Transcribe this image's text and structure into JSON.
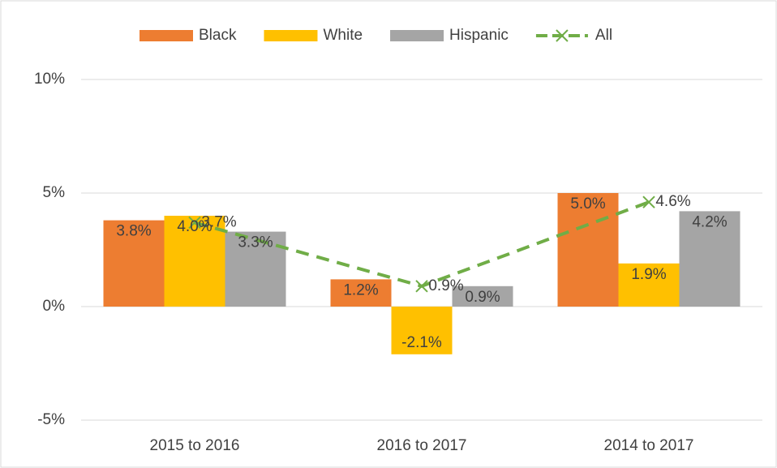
{
  "chart_data": {
    "type": "bar_line",
    "categories": [
      "2015 to 2016",
      "2016 to 2017",
      "2014 to 2017"
    ],
    "series": [
      {
        "name": "Black",
        "color": "#ed7d31",
        "type": "bar",
        "values": [
          3.8,
          1.2,
          5.0
        ],
        "value_labels": [
          "3.8%",
          "1.2%",
          "5.0%"
        ]
      },
      {
        "name": "White",
        "color": "#ffc000",
        "type": "bar",
        "values": [
          4.0,
          -2.1,
          1.9
        ],
        "value_labels": [
          "4.0%",
          "-2.1%",
          "1.9%"
        ]
      },
      {
        "name": "Hispanic",
        "color": "#a5a5a5",
        "type": "bar",
        "values": [
          3.3,
          0.9,
          4.2
        ],
        "value_labels": [
          "3.3%",
          "0.9%",
          "4.2%"
        ]
      },
      {
        "name": "All",
        "color": "#70ad47",
        "type": "line",
        "values": [
          3.7,
          0.9,
          4.6
        ],
        "value_labels": [
          "3.7%",
          "0.9%",
          "4.6%"
        ]
      }
    ],
    "ylim": [
      -5,
      10
    ],
    "yticks": [
      {
        "value": -5,
        "label": "-5%"
      },
      {
        "value": 0,
        "label": "0%"
      },
      {
        "value": 5,
        "label": "5%"
      },
      {
        "value": 10,
        "label": "10%"
      }
    ],
    "grid": true,
    "legend": "top"
  }
}
